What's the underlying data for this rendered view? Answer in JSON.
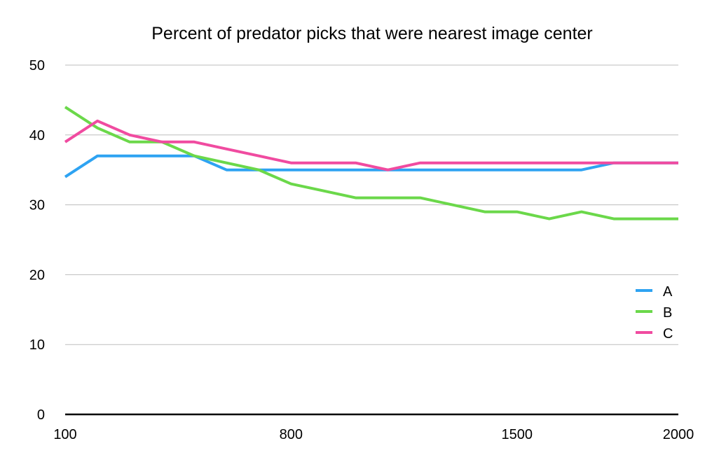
{
  "chart_data": {
    "type": "line",
    "title": "Percent of predator picks that were nearest image center",
    "xlabel": "",
    "ylabel": "",
    "x": [
      100,
      200,
      300,
      400,
      500,
      600,
      700,
      800,
      900,
      1000,
      1100,
      1200,
      1300,
      1400,
      1500,
      1600,
      1700,
      1800,
      1900,
      2000
    ],
    "x_tick_labels": [
      "100",
      "800",
      "1500",
      "2000"
    ],
    "x_tick_values": [
      100,
      800,
      1500,
      2000
    ],
    "xlim": [
      100,
      2000
    ],
    "ylim": [
      0,
      50
    ],
    "y_tick_labels": [
      "0",
      "10",
      "20",
      "30",
      "40",
      "50"
    ],
    "y_tick_values": [
      0,
      10,
      20,
      30,
      40,
      50
    ],
    "grid": true,
    "legend_position": "right",
    "series": [
      {
        "name": "A",
        "color": "#2ea3f2",
        "values": [
          34,
          37,
          37,
          37,
          37,
          35,
          35,
          35,
          35,
          35,
          35,
          35,
          35,
          35,
          35,
          35,
          35,
          36,
          36,
          36
        ]
      },
      {
        "name": "B",
        "color": "#6bd84a",
        "values": [
          44,
          41,
          39,
          39,
          37,
          36,
          35,
          33,
          32,
          31,
          31,
          31,
          30,
          29,
          29,
          28,
          29,
          28,
          28,
          28
        ]
      },
      {
        "name": "C",
        "color": "#f04ba0",
        "values": [
          39,
          42,
          40,
          39,
          39,
          38,
          37,
          36,
          36,
          36,
          35,
          36,
          36,
          36,
          36,
          36,
          36,
          36,
          36,
          36
        ]
      }
    ]
  }
}
